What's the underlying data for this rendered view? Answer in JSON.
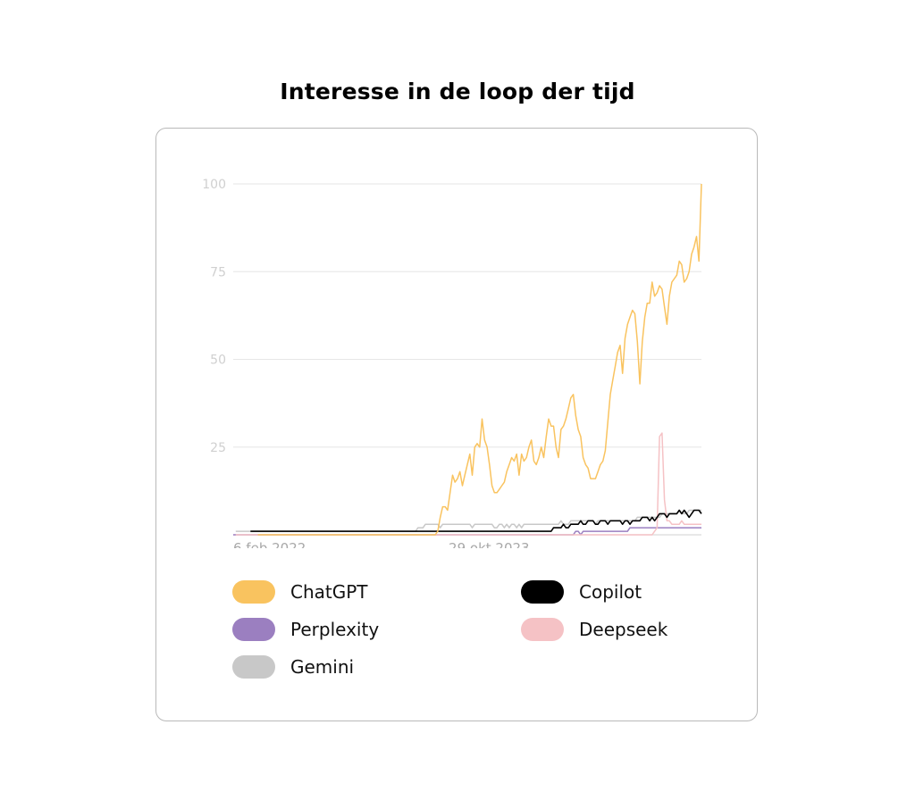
{
  "title": "Interesse in de loop der tijd",
  "chart_data": {
    "type": "line",
    "title": "Interesse in de loop der tijd",
    "xlabel": "",
    "ylabel": "",
    "ylim": [
      0,
      100
    ],
    "yticks": [
      25,
      50,
      75,
      100
    ],
    "xticks": [
      "6 feb 2022",
      "29 okt 2023"
    ],
    "grid": true,
    "legend_placement": "bottom",
    "series": [
      {
        "name": "ChatGPT",
        "color": "#f9c35f",
        "values": [
          0,
          0,
          0,
          0,
          0,
          0,
          0,
          0,
          0,
          0,
          0,
          0,
          0,
          0,
          0,
          0,
          0,
          0,
          0,
          0,
          0,
          0,
          0,
          0,
          0,
          0,
          0,
          0,
          0,
          0,
          0,
          0,
          0,
          0,
          0,
          0,
          0,
          0,
          0,
          0,
          0,
          0,
          0,
          0,
          0,
          0,
          0,
          0,
          0,
          0,
          0,
          0,
          0,
          0,
          0,
          0,
          0,
          0,
          0,
          0,
          0,
          0,
          0,
          0,
          0,
          0,
          0,
          0,
          0,
          0,
          0,
          0,
          0,
          1,
          5,
          8,
          8,
          7,
          12,
          17,
          15,
          16,
          18,
          14,
          17,
          20,
          23,
          17,
          25,
          26,
          25,
          33,
          27,
          25,
          20,
          14,
          12,
          12,
          13,
          14,
          15,
          18,
          20,
          22,
          21,
          23,
          17,
          23,
          21,
          22,
          25,
          27,
          21,
          20,
          22,
          25,
          22,
          28,
          33,
          31,
          31,
          25,
          22,
          30,
          31,
          33,
          36,
          39,
          40,
          34,
          30,
          28,
          22,
          20,
          19,
          16,
          16,
          16,
          18,
          20,
          21,
          24,
          32,
          40,
          44,
          48,
          52,
          54,
          46,
          56,
          60,
          62,
          64,
          63,
          55,
          43,
          55,
          62,
          66,
          66,
          72,
          68,
          69,
          71,
          70,
          65,
          60,
          68,
          72,
          73,
          74,
          78,
          77,
          72,
          73,
          75,
          80,
          82,
          85,
          78,
          100
        ],
        "start_index": 0
      },
      {
        "name": "Copilot",
        "color": "#000000",
        "values": [
          1,
          1,
          1,
          1,
          1,
          1,
          1,
          1,
          1,
          1,
          1,
          1,
          1,
          1,
          1,
          1,
          1,
          1,
          1,
          1,
          1,
          1,
          1,
          1,
          1,
          1,
          1,
          1,
          1,
          1,
          1,
          1,
          1,
          1,
          1,
          1,
          1,
          1,
          1,
          1,
          1,
          1,
          1,
          1,
          1,
          1,
          1,
          1,
          1,
          1,
          1,
          1,
          1,
          1,
          1,
          1,
          1,
          1,
          1,
          1,
          1,
          1,
          1,
          1,
          1,
          1,
          1,
          1,
          1,
          1,
          1,
          1,
          1,
          1,
          1,
          1,
          1,
          1,
          1,
          1,
          1,
          1,
          1,
          1,
          1,
          1,
          1,
          1,
          1,
          1,
          1,
          1,
          1,
          1,
          1,
          1,
          1,
          1,
          1,
          1,
          1,
          1,
          1,
          1,
          1,
          1,
          1,
          1,
          1,
          1,
          1,
          1,
          1,
          1,
          1,
          1,
          1,
          1,
          1,
          1,
          1,
          1,
          1,
          2,
          2,
          2,
          2,
          3,
          2,
          2,
          3,
          3,
          3,
          3,
          4,
          3,
          3,
          4,
          4,
          4,
          3,
          3,
          4,
          4,
          4,
          3,
          4,
          4,
          4,
          4,
          4,
          3,
          4,
          4,
          3,
          4,
          4,
          4,
          4,
          5,
          5,
          5,
          4,
          5,
          4,
          5,
          6,
          6,
          6,
          5,
          6,
          6,
          6,
          6,
          7,
          6,
          7,
          6,
          5,
          6,
          7,
          7,
          7,
          6
        ],
        "start_index": 0
      },
      {
        "name": "Perplexity",
        "color": "#9b7fc0",
        "values": [
          0,
          0,
          0,
          0,
          0,
          0,
          0,
          0,
          0,
          0,
          0,
          0,
          0,
          0,
          0,
          0,
          0,
          0,
          0,
          0,
          0,
          0,
          0,
          0,
          0,
          0,
          0,
          0,
          0,
          0,
          0,
          0,
          0,
          0,
          0,
          0,
          0,
          0,
          0,
          0,
          0,
          0,
          0,
          0,
          0,
          0,
          0,
          0,
          0,
          0,
          0,
          0,
          0,
          0,
          0,
          0,
          0,
          0,
          0,
          0,
          0,
          0,
          0,
          0,
          0,
          0,
          0,
          0,
          0,
          0,
          0,
          0,
          0,
          0,
          0,
          0,
          0,
          0,
          0,
          0,
          0,
          0,
          0,
          0,
          0,
          0,
          0,
          0,
          0,
          0,
          0,
          0,
          0,
          0,
          0,
          0,
          0,
          0,
          0,
          0,
          0,
          0,
          0,
          0,
          0,
          0,
          0,
          0,
          0,
          0,
          0,
          0,
          0,
          0,
          0,
          0,
          0,
          0,
          0,
          0,
          0,
          0,
          0,
          0,
          0,
          0,
          0,
          0,
          0,
          0,
          0,
          0,
          0,
          0,
          0,
          0,
          0,
          0,
          0,
          1,
          1,
          0,
          1,
          1,
          1,
          1,
          1,
          1,
          1,
          1,
          1,
          1,
          1,
          1,
          1,
          1,
          1,
          1,
          1,
          1,
          1,
          2,
          2,
          2,
          2,
          2,
          2,
          2,
          2,
          2,
          2,
          2,
          2,
          2,
          2,
          2,
          2,
          2,
          2,
          2,
          2,
          2,
          2,
          2,
          2,
          2,
          2,
          2,
          2,
          2,
          2
        ],
        "start_index": 0
      },
      {
        "name": "Deepseek",
        "color": "#f5c2c5",
        "values": [
          0,
          0,
          0,
          0,
          0,
          0,
          0,
          0,
          0,
          0,
          0,
          0,
          0,
          0,
          0,
          0,
          0,
          0,
          0,
          0,
          0,
          0,
          0,
          0,
          0,
          0,
          0,
          0,
          0,
          0,
          0,
          0,
          0,
          0,
          0,
          0,
          0,
          0,
          0,
          0,
          0,
          0,
          0,
          0,
          0,
          0,
          0,
          0,
          0,
          0,
          0,
          0,
          0,
          0,
          0,
          0,
          0,
          0,
          0,
          0,
          0,
          0,
          0,
          0,
          0,
          0,
          0,
          0,
          0,
          0,
          0,
          0,
          0,
          0,
          0,
          0,
          0,
          0,
          0,
          0,
          0,
          0,
          0,
          0,
          0,
          0,
          0,
          0,
          0,
          0,
          0,
          0,
          0,
          0,
          0,
          0,
          0,
          0,
          0,
          0,
          0,
          0,
          0,
          0,
          0,
          0,
          0,
          0,
          0,
          0,
          0,
          0,
          0,
          0,
          0,
          0,
          0,
          0,
          0,
          0,
          0,
          0,
          0,
          0,
          0,
          0,
          0,
          0,
          0,
          0,
          0,
          0,
          0,
          0,
          0,
          0,
          0,
          0,
          0,
          0,
          0,
          0,
          0,
          0,
          0,
          0,
          0,
          0,
          0,
          0,
          0,
          0,
          0,
          0,
          0,
          0,
          0,
          0,
          0,
          0,
          0,
          0,
          0,
          0,
          0,
          0,
          0,
          0,
          0,
          0,
          1,
          2,
          28,
          29,
          10,
          4,
          4,
          3,
          3,
          3,
          3,
          4,
          3,
          3,
          3,
          3,
          3,
          3,
          3,
          3
        ],
        "start_index": 0
      },
      {
        "name": "Gemini",
        "color": "#c8c8c8",
        "values": [
          1,
          1,
          1,
          1,
          1,
          1,
          1,
          1,
          1,
          1,
          1,
          1,
          1,
          1,
          1,
          1,
          1,
          1,
          1,
          1,
          1,
          1,
          1,
          1,
          1,
          1,
          1,
          1,
          1,
          1,
          1,
          1,
          1,
          1,
          1,
          1,
          1,
          1,
          1,
          1,
          1,
          1,
          1,
          1,
          1,
          1,
          1,
          1,
          1,
          1,
          1,
          1,
          1,
          1,
          1,
          1,
          1,
          1,
          1,
          1,
          1,
          1,
          1,
          1,
          1,
          1,
          1,
          1,
          1,
          1,
          1,
          1,
          1,
          1,
          2,
          2,
          2,
          3,
          3,
          3,
          3,
          3,
          3,
          2,
          3,
          3,
          3,
          3,
          3,
          3,
          3,
          3,
          3,
          3,
          3,
          3,
          2,
          3,
          3,
          3,
          3,
          3,
          3,
          3,
          3,
          2,
          2,
          3,
          3,
          2,
          3,
          2,
          3,
          3,
          2,
          3,
          2,
          3,
          3,
          3,
          3,
          3,
          3,
          3,
          3,
          3,
          3,
          3,
          3,
          3,
          3,
          3,
          4,
          3,
          3,
          3,
          4,
          4,
          4,
          4,
          4,
          4,
          4,
          4,
          4,
          4,
          3,
          4,
          4,
          4,
          4,
          4,
          4,
          4,
          4,
          4,
          4,
          4,
          4,
          4,
          4,
          4,
          4,
          5,
          5,
          5,
          5,
          5,
          5,
          5,
          5,
          5,
          5,
          6,
          6,
          6,
          6,
          6,
          6,
          6,
          7,
          6,
          6,
          6,
          7,
          7,
          7,
          7,
          7,
          7
        ],
        "start_index": 0
      }
    ]
  },
  "legend": [
    {
      "name": "ChatGPT",
      "color": "#f9c35f"
    },
    {
      "name": "Copilot",
      "color": "#000000"
    },
    {
      "name": "Perplexity",
      "color": "#9b7fc0"
    },
    {
      "name": "Deepseek",
      "color": "#f5c2c5"
    },
    {
      "name": "Gemini",
      "color": "#c8c8c8"
    }
  ]
}
